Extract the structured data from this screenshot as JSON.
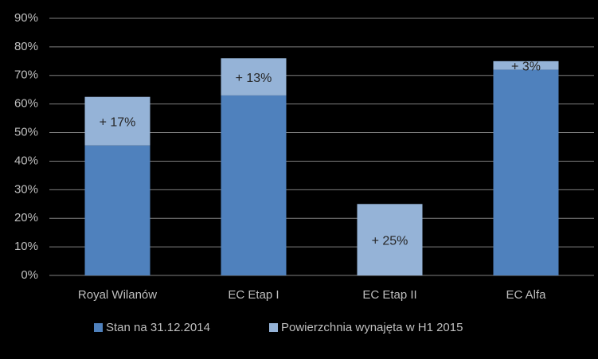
{
  "chart_data": {
    "type": "stacked-bar",
    "categories": [
      "Royal Wilanów",
      "EC Etap I",
      "EC Etap II",
      "EC Alfa"
    ],
    "series": [
      {
        "name": "Stan na 31.12.2014",
        "color": "#4f81bd",
        "values": [
          45.5,
          63,
          0,
          72
        ]
      },
      {
        "name": "Powierzchnia wynajęta w H1 2015",
        "color": "#95b3d7",
        "values": [
          17,
          13,
          25,
          3
        ],
        "value_labels": [
          "+ 17%",
          "+ 13%",
          "+ 25%",
          "+ 3%"
        ]
      }
    ],
    "ylim": [
      0,
      90
    ],
    "yticks": [
      {
        "value": 0,
        "label": "0%"
      },
      {
        "value": 10,
        "label": "10%"
      },
      {
        "value": 20,
        "label": "20%"
      },
      {
        "value": 30,
        "label": "30%"
      },
      {
        "value": 40,
        "label": "40%"
      },
      {
        "value": 50,
        "label": "50%"
      },
      {
        "value": 60,
        "label": "60%"
      },
      {
        "value": 70,
        "label": "70%"
      },
      {
        "value": 80,
        "label": "80%"
      },
      {
        "value": 90,
        "label": "90%"
      }
    ],
    "grid": true,
    "legend": "bottom"
  }
}
